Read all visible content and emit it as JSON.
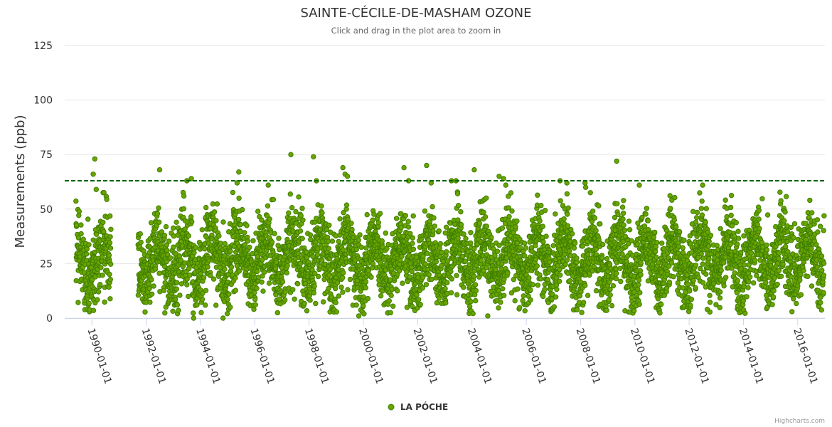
{
  "chart_data": {
    "type": "scatter",
    "title": "SAINTE-CÉCILE-DE-MASHAM OZONE",
    "subtitle": "Click and drag in the plot area to zoom in",
    "ylabel": "Measurements (ppb)",
    "xlabel": "",
    "ylim": [
      0,
      125
    ],
    "yticks": [
      "0",
      "25",
      "50",
      "75",
      "100",
      "125"
    ],
    "xlim": [
      "1989-01-01",
      "2016-12-31"
    ],
    "xticks": [
      "1990-01-01",
      "1992-01-01",
      "1994-01-01",
      "1996-01-01",
      "1998-01-01",
      "2000-01-01",
      "2002-01-01",
      "2004-01-01",
      "2006-01-01",
      "2008-01-01",
      "2010-01-01",
      "2012-01-01",
      "2014-01-01",
      "2016-01-01"
    ],
    "grid": true,
    "legend_position": "bottom-center",
    "reference_line": {
      "y": 63,
      "color": "#006400",
      "style": "dashed"
    },
    "series": [
      {
        "name": "LA PÓCHE",
        "color": "#6aa400",
        "marker_edge": "#3f7f00",
        "data_gap": [
          "1990-09-15",
          "1991-09-15"
        ],
        "seasonal_pattern": {
          "mean": 27,
          "amplitude": 9,
          "peak_month": 5,
          "spread": 9
        },
        "outliers": [
          [
            "1990-02-10",
            73
          ],
          [
            "1990-01-20",
            66
          ],
          [
            "1990-03-01",
            59
          ],
          [
            "1992-07-01",
            68
          ],
          [
            "1993-07-01",
            63
          ],
          [
            "1993-09-01",
            64
          ],
          [
            "1995-06-01",
            67
          ],
          [
            "1995-05-10",
            62
          ],
          [
            "1996-07-01",
            61
          ],
          [
            "1997-05-01",
            75
          ],
          [
            "1998-03-01",
            74
          ],
          [
            "1998-04-10",
            63
          ],
          [
            "1999-04-01",
            69
          ],
          [
            "1999-05-01",
            66
          ],
          [
            "1999-06-01",
            65
          ],
          [
            "2001-07-01",
            69
          ],
          [
            "2001-09-01",
            63
          ],
          [
            "2002-05-01",
            70
          ],
          [
            "2002-07-01",
            62
          ],
          [
            "2003-04-01",
            63
          ],
          [
            "2003-06-01",
            63
          ],
          [
            "2004-02-01",
            68
          ],
          [
            "2005-01-01",
            65
          ],
          [
            "2005-03-01",
            64
          ],
          [
            "2005-04-01",
            61
          ],
          [
            "2007-04-01",
            63
          ],
          [
            "2007-07-01",
            62
          ],
          [
            "2008-03-01",
            62
          ],
          [
            "2008-03-10",
            60
          ],
          [
            "2009-05-01",
            72
          ],
          [
            "2010-03-01",
            61
          ],
          [
            "2012-07-01",
            61
          ],
          [
            "1993-10-01",
            0
          ],
          [
            "1994-11-01",
            0
          ],
          [
            "1999-11-01",
            1
          ],
          [
            "2000-01-10",
            2
          ],
          [
            "2004-08-01",
            1
          ],
          [
            "2012-09-01",
            4
          ]
        ]
      }
    ]
  },
  "credits": "Highcharts.com"
}
